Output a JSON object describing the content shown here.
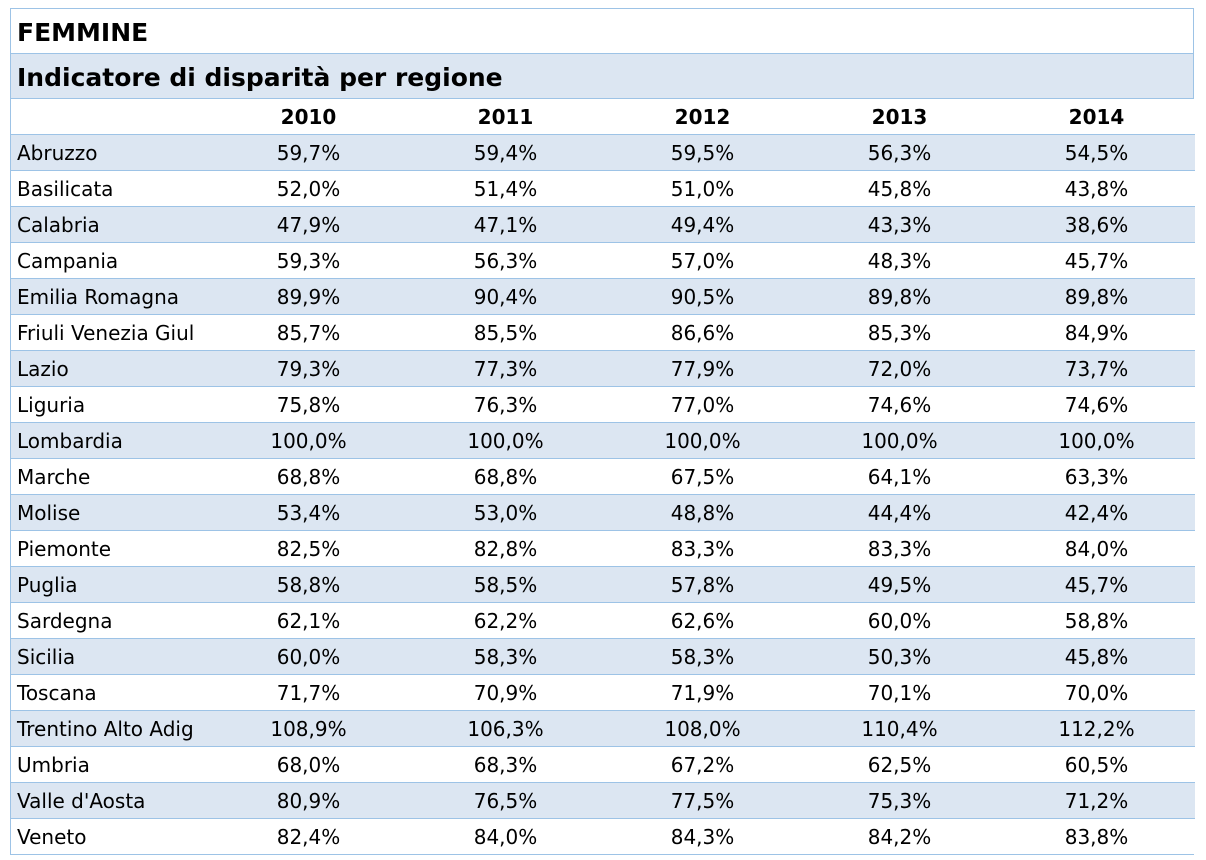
{
  "title": "FEMMINE",
  "subtitle": "Indicatore di disparità per regione",
  "years": [
    "2010",
    "2011",
    "2012",
    "2013",
    "2014"
  ],
  "rows": [
    {
      "region": "Abruzzo",
      "values": [
        "59,7%",
        "59,4%",
        "59,5%",
        "56,3%",
        "54,5%"
      ]
    },
    {
      "region": "Basilicata",
      "values": [
        "52,0%",
        "51,4%",
        "51,0%",
        "45,8%",
        "43,8%"
      ]
    },
    {
      "region": "Calabria",
      "values": [
        "47,9%",
        "47,1%",
        "49,4%",
        "43,3%",
        "38,6%"
      ]
    },
    {
      "region": "Campania",
      "values": [
        "59,3%",
        "56,3%",
        "57,0%",
        "48,3%",
        "45,7%"
      ]
    },
    {
      "region": "Emilia Romagna",
      "values": [
        "89,9%",
        "90,4%",
        "90,5%",
        "89,8%",
        "89,8%"
      ]
    },
    {
      "region": "Friuli Venezia Giul",
      "values": [
        "85,7%",
        "85,5%",
        "86,6%",
        "85,3%",
        "84,9%"
      ]
    },
    {
      "region": "Lazio",
      "values": [
        "79,3%",
        "77,3%",
        "77,9%",
        "72,0%",
        "73,7%"
      ]
    },
    {
      "region": "Liguria",
      "values": [
        "75,8%",
        "76,3%",
        "77,0%",
        "74,6%",
        "74,6%"
      ]
    },
    {
      "region": "Lombardia",
      "values": [
        "100,0%",
        "100,0%",
        "100,0%",
        "100,0%",
        "100,0%"
      ]
    },
    {
      "region": "Marche",
      "values": [
        "68,8%",
        "68,8%",
        "67,5%",
        "64,1%",
        "63,3%"
      ]
    },
    {
      "region": "Molise",
      "values": [
        "53,4%",
        "53,0%",
        "48,8%",
        "44,4%",
        "42,4%"
      ]
    },
    {
      "region": "Piemonte",
      "values": [
        "82,5%",
        "82,8%",
        "83,3%",
        "83,3%",
        "84,0%"
      ]
    },
    {
      "region": "Puglia",
      "values": [
        "58,8%",
        "58,5%",
        "57,8%",
        "49,5%",
        "45,7%"
      ]
    },
    {
      "region": "Sardegna",
      "values": [
        "62,1%",
        "62,2%",
        "62,6%",
        "60,0%",
        "58,8%"
      ]
    },
    {
      "region": "Sicilia",
      "values": [
        "60,0%",
        "58,3%",
        "58,3%",
        "50,3%",
        "45,8%"
      ]
    },
    {
      "region": "Toscana",
      "values": [
        "71,7%",
        "70,9%",
        "71,9%",
        "70,1%",
        "70,0%"
      ]
    },
    {
      "region": "Trentino Alto Adig",
      "values": [
        "108,9%",
        "106,3%",
        "108,0%",
        "110,4%",
        "112,2%"
      ]
    },
    {
      "region": "Umbria",
      "values": [
        "68,0%",
        "68,3%",
        "67,2%",
        "62,5%",
        "60,5%"
      ]
    },
    {
      "region": "Valle d'Aosta",
      "values": [
        "80,9%",
        "76,5%",
        "77,5%",
        "75,3%",
        "71,2%"
      ]
    },
    {
      "region": "Veneto",
      "values": [
        "82,4%",
        "84,0%",
        "84,3%",
        "84,2%",
        "83,8%"
      ]
    }
  ]
}
